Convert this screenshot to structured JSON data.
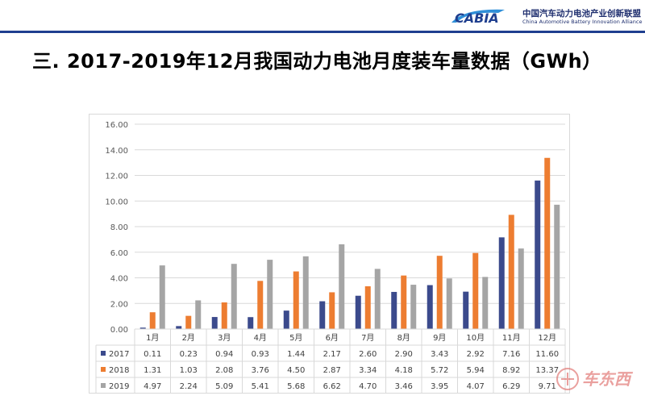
{
  "header": {
    "logo_text": "CABIA",
    "org_cn": "中国汽车动力电池产业创新联盟",
    "org_en": "China Automotive Battery Innovation Alliance"
  },
  "slide": {
    "title": "三. 2017-2019年12月我国动力电池月度装车量数据（GWh）"
  },
  "chart_data": {
    "type": "bar",
    "title": "",
    "xlabel": "",
    "ylabel": "",
    "ylim": [
      0,
      16
    ],
    "yticks": [
      "16.00",
      "14.00",
      "12.00",
      "10.00",
      "8.00",
      "6.00",
      "4.00",
      "2.00",
      "0.00"
    ],
    "grid": true,
    "legend": "table-below",
    "categories": [
      "1月",
      "2月",
      "3月",
      "4月",
      "5月",
      "6月",
      "7月",
      "8月",
      "9月",
      "10月",
      "11月",
      "12月"
    ],
    "series": [
      {
        "name": "2017",
        "color": "#3b4a8c",
        "values": [
          0.11,
          0.23,
          0.94,
          0.93,
          1.44,
          2.17,
          2.6,
          2.9,
          3.43,
          2.92,
          7.16,
          11.6
        ],
        "labels": [
          "0.11",
          "0.23",
          "0.94",
          "0.93",
          "1.44",
          "2.17",
          "2.60",
          "2.90",
          "3.43",
          "2.92",
          "7.16",
          "11.60"
        ]
      },
      {
        "name": "2018",
        "color": "#ed7d31",
        "values": [
          1.31,
          1.03,
          2.08,
          3.76,
          4.5,
          2.87,
          3.34,
          4.18,
          5.72,
          5.94,
          8.92,
          13.37
        ],
        "labels": [
          "1.31",
          "1.03",
          "2.08",
          "3.76",
          "4.50",
          "2.87",
          "3.34",
          "4.18",
          "5.72",
          "5.94",
          "8.92",
          "13.37"
        ]
      },
      {
        "name": "2019",
        "color": "#a5a5a5",
        "values": [
          4.97,
          2.24,
          5.09,
          5.41,
          5.68,
          6.62,
          4.7,
          3.46,
          3.95,
          4.07,
          6.29,
          9.71
        ],
        "labels": [
          "4.97",
          "2.24",
          "5.09",
          "5.41",
          "5.68",
          "6.62",
          "4.70",
          "3.46",
          "3.95",
          "4.07",
          "6.29",
          "9.71"
        ]
      }
    ]
  },
  "watermark": {
    "text": "车东西"
  }
}
